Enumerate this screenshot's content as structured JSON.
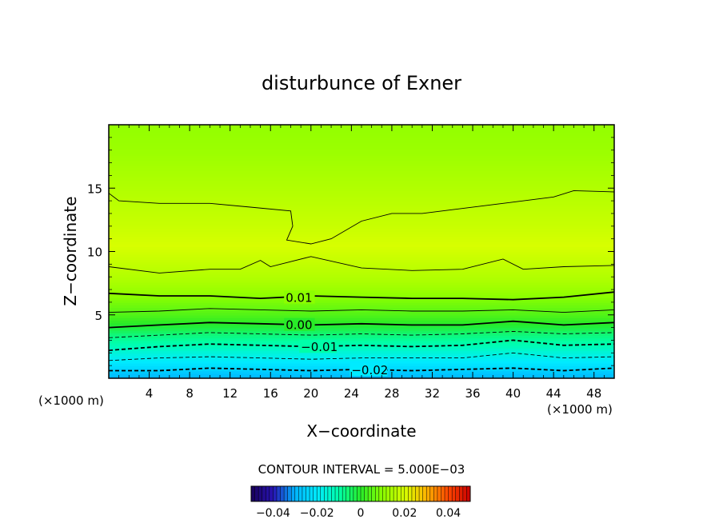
{
  "chart_data": {
    "type": "heatmap",
    "title": "disturbunce of Exner",
    "xlabel": "X−coordinate",
    "ylabel": "Z−coordinate",
    "x_unit": "(×1000 m)",
    "y_unit": "(×1000 m)",
    "xlim": [
      0,
      50
    ],
    "ylim": [
      0,
      20
    ],
    "x_ticks": [
      4,
      8,
      12,
      16,
      20,
      24,
      28,
      32,
      36,
      40,
      44,
      48
    ],
    "y_ticks": [
      5,
      10,
      15
    ],
    "contour_interval_text": "CONTOUR INTERVAL = 5.000E−03",
    "colorbar": {
      "min": -0.05,
      "max": 0.05,
      "tick_values": [
        -0.04,
        -0.02,
        0,
        0.02,
        0.04
      ],
      "tick_labels": [
        "−0.04",
        "−0.02",
        "0",
        "0.02",
        "0.04"
      ]
    },
    "field_profile": [
      {
        "z": 0.0,
        "value": -0.03
      },
      {
        "z": 0.5,
        "value": -0.026
      },
      {
        "z": 1.0,
        "value": -0.022
      },
      {
        "z": 1.5,
        "value": -0.019
      },
      {
        "z": 2.0,
        "value": -0.016
      },
      {
        "z": 2.5,
        "value": -0.012
      },
      {
        "z": 3.0,
        "value": -0.009
      },
      {
        "z": 3.5,
        "value": -0.006
      },
      {
        "z": 4.0,
        "value": -0.002
      },
      {
        "z": 4.5,
        "value": 0.001
      },
      {
        "z": 5.0,
        "value": 0.004
      },
      {
        "z": 6.0,
        "value": 0.008
      },
      {
        "z": 7.0,
        "value": 0.012
      },
      {
        "z": 8.0,
        "value": 0.015
      },
      {
        "z": 9.0,
        "value": 0.017
      },
      {
        "z": 10.5,
        "value": 0.02
      },
      {
        "z": 12.0,
        "value": 0.018
      },
      {
        "z": 14.0,
        "value": 0.016
      },
      {
        "z": 16.0,
        "value": 0.014
      },
      {
        "z": 18.0,
        "value": 0.012
      },
      {
        "z": 20.0,
        "value": 0.011
      }
    ],
    "contours": [
      {
        "level": -0.02,
        "label": "−0.02",
        "label_x": 24,
        "style": "dashed",
        "bold": true,
        "points": [
          [
            0,
            0.6
          ],
          [
            5,
            0.6
          ],
          [
            10,
            0.8
          ],
          [
            15,
            0.7
          ],
          [
            20,
            0.6
          ],
          [
            25,
            0.7
          ],
          [
            30,
            0.6
          ],
          [
            35,
            0.7
          ],
          [
            40,
            0.8
          ],
          [
            45,
            0.6
          ],
          [
            50,
            0.8
          ]
        ]
      },
      {
        "level": -0.015,
        "style": "dashed",
        "bold": false,
        "points": [
          [
            0,
            1.4
          ],
          [
            5,
            1.6
          ],
          [
            10,
            1.7
          ],
          [
            15,
            1.6
          ],
          [
            20,
            1.5
          ],
          [
            25,
            1.6
          ],
          [
            30,
            1.6
          ],
          [
            35,
            1.6
          ],
          [
            40,
            2.0
          ],
          [
            45,
            1.6
          ],
          [
            50,
            1.7
          ]
        ]
      },
      {
        "level": -0.01,
        "label": "−0.01",
        "label_x": 19,
        "style": "dashed",
        "bold": true,
        "points": [
          [
            0,
            2.2
          ],
          [
            5,
            2.5
          ],
          [
            10,
            2.7
          ],
          [
            15,
            2.6
          ],
          [
            20,
            2.5
          ],
          [
            25,
            2.6
          ],
          [
            30,
            2.5
          ],
          [
            35,
            2.6
          ],
          [
            40,
            3.0
          ],
          [
            45,
            2.6
          ],
          [
            50,
            2.7
          ]
        ]
      },
      {
        "level": -0.005,
        "style": "dashed",
        "bold": false,
        "points": [
          [
            0,
            3.2
          ],
          [
            5,
            3.4
          ],
          [
            10,
            3.6
          ],
          [
            15,
            3.5
          ],
          [
            20,
            3.4
          ],
          [
            25,
            3.5
          ],
          [
            30,
            3.4
          ],
          [
            35,
            3.5
          ],
          [
            40,
            3.7
          ],
          [
            45,
            3.5
          ],
          [
            50,
            3.6
          ]
        ]
      },
      {
        "level": 0.0,
        "label": "0.00",
        "label_x": 17.5,
        "style": "solid",
        "bold": true,
        "points": [
          [
            0,
            4.0
          ],
          [
            5,
            4.2
          ],
          [
            10,
            4.4
          ],
          [
            15,
            4.3
          ],
          [
            20,
            4.2
          ],
          [
            25,
            4.3
          ],
          [
            30,
            4.2
          ],
          [
            35,
            4.2
          ],
          [
            40,
            4.5
          ],
          [
            45,
            4.2
          ],
          [
            50,
            4.4
          ]
        ]
      },
      {
        "level": 0.005,
        "style": "solid",
        "bold": false,
        "points": [
          [
            0,
            5.2
          ],
          [
            5,
            5.3
          ],
          [
            10,
            5.5
          ],
          [
            15,
            5.4
          ],
          [
            20,
            5.3
          ],
          [
            25,
            5.4
          ],
          [
            30,
            5.3
          ],
          [
            35,
            5.3
          ],
          [
            40,
            5.4
          ],
          [
            45,
            5.2
          ],
          [
            50,
            5.4
          ]
        ]
      },
      {
        "level": 0.01,
        "label": "0.01",
        "label_x": 17.5,
        "style": "solid",
        "bold": true,
        "points": [
          [
            0,
            6.7
          ],
          [
            5,
            6.5
          ],
          [
            10,
            6.5
          ],
          [
            15,
            6.3
          ],
          [
            20,
            6.5
          ],
          [
            25,
            6.4
          ],
          [
            30,
            6.3
          ],
          [
            35,
            6.3
          ],
          [
            40,
            6.2
          ],
          [
            45,
            6.4
          ],
          [
            50,
            6.8
          ]
        ]
      },
      {
        "level": 0.015,
        "style": "solid",
        "bold": false,
        "points": [
          [
            0,
            8.8
          ],
          [
            5,
            8.3
          ],
          [
            10,
            8.6
          ],
          [
            13,
            8.6
          ],
          [
            15,
            9.3
          ],
          [
            16,
            8.8
          ],
          [
            20,
            9.6
          ],
          [
            25,
            8.7
          ],
          [
            30,
            8.5
          ],
          [
            35,
            8.6
          ],
          [
            39,
            9.4
          ],
          [
            41,
            8.6
          ],
          [
            45,
            8.8
          ],
          [
            50,
            8.9
          ]
        ]
      },
      {
        "level": 0.02,
        "style": "solid",
        "bold": false,
        "points": [
          [
            0,
            14.6
          ],
          [
            1,
            14.0
          ],
          [
            5,
            13.8
          ],
          [
            10,
            13.8
          ],
          [
            14,
            13.5
          ],
          [
            18,
            13.2
          ],
          [
            18.2,
            12.0
          ],
          [
            17.6,
            10.9
          ],
          [
            20,
            10.6
          ],
          [
            22,
            11.0
          ],
          [
            25,
            12.4
          ],
          [
            28,
            13.0
          ],
          [
            31,
            13.0
          ],
          [
            34,
            13.3
          ],
          [
            39,
            13.8
          ],
          [
            44,
            14.3
          ],
          [
            46,
            14.8
          ],
          [
            50,
            14.7
          ]
        ]
      }
    ]
  }
}
